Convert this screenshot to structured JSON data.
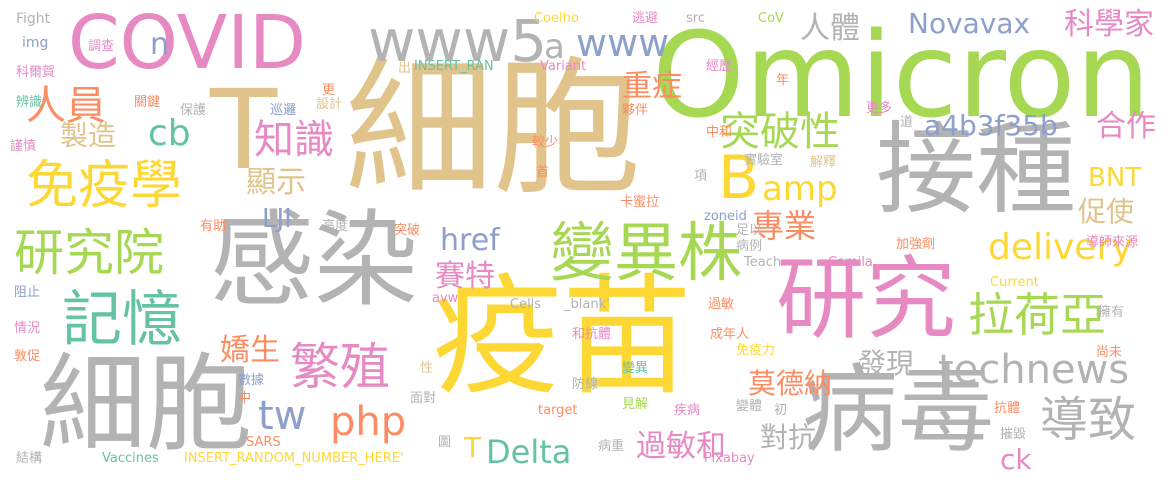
{
  "words": [
    {
      "text": "疫苗",
      "color": "#fdd835"
    },
    {
      "text": "細胞",
      "color": "#e0c48b"
    },
    {
      "text": "Omicron",
      "color": "#a6d854"
    },
    {
      "text": "感染",
      "color": "#b3b3b3"
    },
    {
      "text": "細胞",
      "color": "#b3b3b3"
    },
    {
      "text": "研究",
      "color": "#e78ac3"
    },
    {
      "text": "接種",
      "color": "#b3b3b3"
    },
    {
      "text": "病毒",
      "color": "#b3b3b3"
    },
    {
      "text": "COVID",
      "color": "#e78ac3"
    },
    {
      "text": "變異株",
      "color": "#a6d854"
    },
    {
      "text": "T",
      "color": "#e0c48b"
    },
    {
      "text": "www5",
      "color": "#b3b3b3"
    },
    {
      "text": "免疫學",
      "color": "#fdd835"
    },
    {
      "text": "研究院",
      "color": "#a6d854"
    },
    {
      "text": "記憶",
      "color": "#66c2a5"
    },
    {
      "text": "繁殖",
      "color": "#e78ac3"
    },
    {
      "text": "拉荷亞",
      "color": "#a6d854"
    },
    {
      "text": "導致",
      "color": "#b3b3b3"
    },
    {
      "text": "technews",
      "color": "#b3b3b3"
    },
    {
      "text": "B",
      "color": "#fdd835"
    },
    {
      "text": "www",
      "color": "#8da0cb"
    },
    {
      "text": "Novavax",
      "color": "#8da0cb"
    },
    {
      "text": "科學家",
      "color": "#e78ac3"
    },
    {
      "text": "人員",
      "color": "#fc8d62"
    },
    {
      "text": "知識",
      "color": "#e78ac3"
    },
    {
      "text": "突破性",
      "color": "#a6d854"
    },
    {
      "text": "a4b3f35b",
      "color": "#8da0cb"
    },
    {
      "text": "合作",
      "color": "#e78ac3"
    },
    {
      "text": "amp",
      "color": "#fdd835"
    },
    {
      "text": "delivery",
      "color": "#fdd835"
    },
    {
      "text": "專業",
      "color": "#fc8d62"
    },
    {
      "text": "賽特",
      "color": "#e78ac3"
    },
    {
      "text": "php",
      "color": "#fc8d62"
    },
    {
      "text": "Delta",
      "color": "#66c2a5"
    },
    {
      "text": "tw",
      "color": "#8da0cb"
    },
    {
      "text": "cb",
      "color": "#66c2a5"
    },
    {
      "text": "製造",
      "color": "#e0c48b"
    },
    {
      "text": "顯示",
      "color": "#e0c48b"
    },
    {
      "text": "重症",
      "color": "#fc8d62"
    },
    {
      "text": "人體",
      "color": "#b3b3b3"
    },
    {
      "text": "a",
      "color": "#b3b3b3"
    },
    {
      "text": "n",
      "color": "#8da0cb"
    },
    {
      "text": "href",
      "color": "#8da0cb"
    },
    {
      "text": "嬌生",
      "color": "#fc8d62"
    },
    {
      "text": "莫德納",
      "color": "#fc8d62"
    },
    {
      "text": "過敏和",
      "color": "#e78ac3"
    },
    {
      "text": "對抗",
      "color": "#b3b3b3"
    },
    {
      "text": "發現",
      "color": "#b3b3b3"
    },
    {
      "text": "BNT",
      "color": "#fdd835"
    },
    {
      "text": "促使",
      "color": "#e0c48b"
    },
    {
      "text": "ck",
      "color": "#e78ac3"
    },
    {
      "text": "LJI",
      "color": "#8da0cb"
    },
    {
      "text": "T",
      "color": "#fdd835"
    },
    {
      "text": "Fight",
      "color": "#b3b3b3"
    },
    {
      "text": "img",
      "color": "#8da0cb"
    },
    {
      "text": "調查",
      "color": "#e78ac3"
    },
    {
      "text": "科爾賀",
      "color": "#e78ac3"
    },
    {
      "text": "辨識",
      "color": "#66c2a5"
    },
    {
      "text": "關鍵",
      "color": "#fc8d62"
    },
    {
      "text": "謹慎",
      "color": "#e78ac3"
    },
    {
      "text": "保護",
      "color": "#b3b3b3"
    },
    {
      "text": "巡邏",
      "color": "#8da0cb"
    },
    {
      "text": "設計",
      "color": "#e0c48b"
    },
    {
      "text": "更",
      "color": "#fc8d62"
    },
    {
      "text": "出",
      "color": "#e0c48b"
    },
    {
      "text": "INSERT_RAN",
      "color": "#66c2a5"
    },
    {
      "text": "Coelho",
      "color": "#fdd835"
    },
    {
      "text": "Variant",
      "color": "#e78ac3"
    },
    {
      "text": "逃避",
      "color": "#e78ac3"
    },
    {
      "text": "src",
      "color": "#b3b3b3"
    },
    {
      "text": "CoV",
      "color": "#a6d854"
    },
    {
      "text": "經歷",
      "color": "#e78ac3"
    },
    {
      "text": "年",
      "color": "#fc8d62"
    },
    {
      "text": "更多",
      "color": "#e78ac3"
    },
    {
      "text": "夥伴",
      "color": "#fc8d62"
    },
    {
      "text": "中和",
      "color": "#fc8d62"
    },
    {
      "text": "道",
      "color": "#b3b3b3"
    },
    {
      "text": "較少",
      "color": "#fc8d62"
    },
    {
      "text": "首",
      "color": "#fc8d62"
    },
    {
      "text": "實驗室",
      "color": "#b3b3b3"
    },
    {
      "text": "解釋",
      "color": "#e0c48b"
    },
    {
      "text": "項",
      "color": "#b3b3b3"
    },
    {
      "text": "卡蜜拉",
      "color": "#fc8d62"
    },
    {
      "text": "有助",
      "color": "#fc8d62"
    },
    {
      "text": "高度",
      "color": "#b3b3b3"
    },
    {
      "text": "突破",
      "color": "#fc8d62"
    },
    {
      "text": "zoneid",
      "color": "#8da0cb"
    },
    {
      "text": "足以",
      "color": "#b3b3b3"
    },
    {
      "text": "病例",
      "color": "#b3b3b3"
    },
    {
      "text": "加強劑",
      "color": "#fc8d62"
    },
    {
      "text": "導師來源",
      "color": "#e78ac3"
    },
    {
      "text": "Teach",
      "color": "#b3b3b3"
    },
    {
      "text": "Camila",
      "color": "#e78ac3"
    },
    {
      "text": "阻止",
      "color": "#8da0cb"
    },
    {
      "text": "avw",
      "color": "#e78ac3"
    },
    {
      "text": "Current",
      "color": "#fdd835"
    },
    {
      "text": "擁有",
      "color": "#b3b3b3"
    },
    {
      "text": "過敏",
      "color": "#fc8d62"
    },
    {
      "text": "Cells",
      "color": "#b3b3b3"
    },
    {
      "text": "_blank'",
      "color": "#b3b3b3"
    },
    {
      "text": "情況",
      "color": "#e78ac3"
    },
    {
      "text": "和抗體",
      "color": "#e78ac3"
    },
    {
      "text": "成年人",
      "color": "#fc8d62"
    },
    {
      "text": "免疫力",
      "color": "#fdd835"
    },
    {
      "text": "尚未",
      "color": "#fc8d62"
    },
    {
      "text": "敦促",
      "color": "#fc8d62"
    },
    {
      "text": "數據",
      "color": "#8da0cb"
    },
    {
      "text": "變異",
      "color": "#66c2a5"
    },
    {
      "text": "防線",
      "color": "#b3b3b3"
    },
    {
      "text": "性",
      "color": "#e0c48b"
    },
    {
      "text": "中",
      "color": "#fc8d62"
    },
    {
      "text": "面對",
      "color": "#b3b3b3"
    },
    {
      "text": "target",
      "color": "#fc8d62"
    },
    {
      "text": "見解",
      "color": "#a6d854"
    },
    {
      "text": "疾病",
      "color": "#e78ac3"
    },
    {
      "text": "變體",
      "color": "#b3b3b3"
    },
    {
      "text": "初",
      "color": "#b3b3b3"
    },
    {
      "text": "抗體",
      "color": "#fc8d62"
    },
    {
      "text": "摧毀",
      "color": "#b3b3b3"
    },
    {
      "text": "SARS",
      "color": "#fc8d62"
    },
    {
      "text": "圖",
      "color": "#b3b3b3"
    },
    {
      "text": "病重",
      "color": "#b3b3b3"
    },
    {
      "text": "Pixabay",
      "color": "#e78ac3"
    },
    {
      "text": "結構",
      "color": "#b3b3b3"
    },
    {
      "text": "Vaccines",
      "color": "#66c2a5"
    },
    {
      "text": "INSERT_RANDOM_NUMBER_HERE'",
      "color": "#fdd835"
    }
  ]
}
